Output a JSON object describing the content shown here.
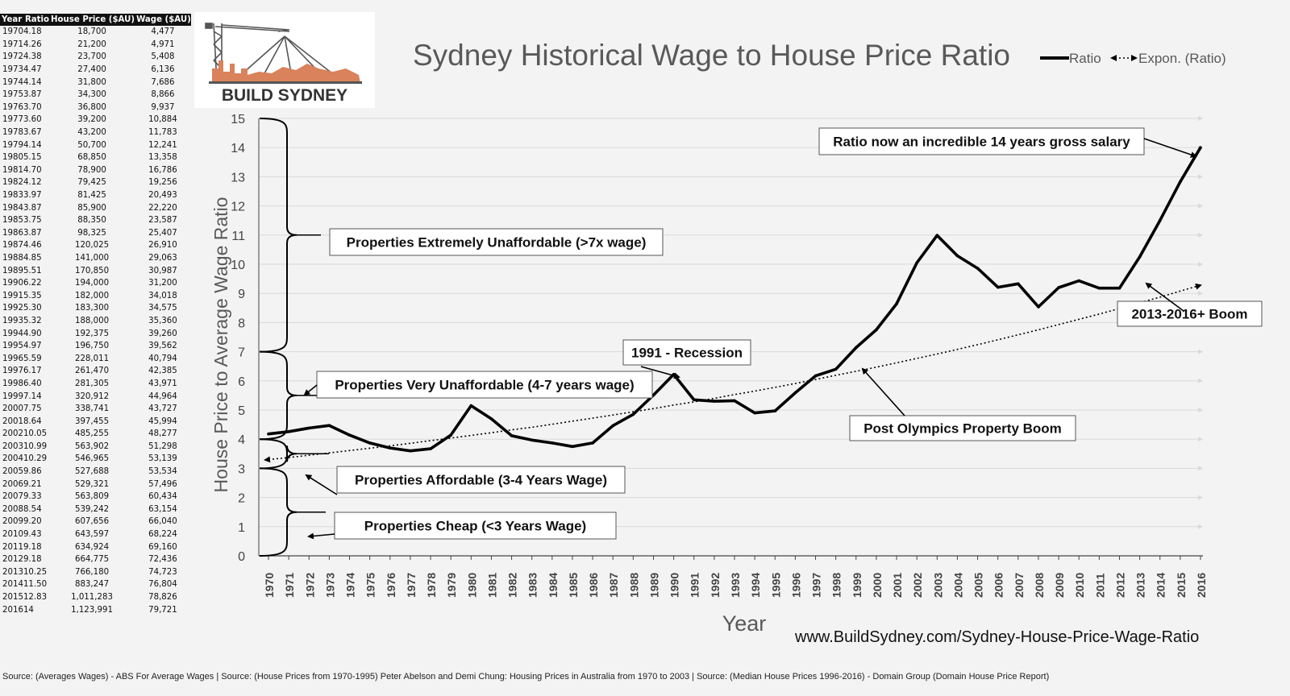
{
  "table": {
    "headers": [
      "Year",
      "Ratio",
      "House Price ($AU)",
      "Wage ($AU)"
    ],
    "rows": [
      [
        "1970",
        "4.18",
        "18,700",
        "4,477"
      ],
      [
        "1971",
        "4.26",
        "21,200",
        "4,971"
      ],
      [
        "1972",
        "4.38",
        "23,700",
        "5,408"
      ],
      [
        "1973",
        "4.47",
        "27,400",
        "6,136"
      ],
      [
        "1974",
        "4.14",
        "31,800",
        "7,686"
      ],
      [
        "1975",
        "3.87",
        "34,300",
        "8,866"
      ],
      [
        "1976",
        "3.70",
        "36,800",
        "9,937"
      ],
      [
        "1977",
        "3.60",
        "39,200",
        "10,884"
      ],
      [
        "1978",
        "3.67",
        "43,200",
        "11,783"
      ],
      [
        "1979",
        "4.14",
        "50,700",
        "12,241"
      ],
      [
        "1980",
        "5.15",
        "68,850",
        "13,358"
      ],
      [
        "1981",
        "4.70",
        "78,900",
        "16,786"
      ],
      [
        "1982",
        "4.12",
        "79,425",
        "19,256"
      ],
      [
        "1983",
        "3.97",
        "81,425",
        "20,493"
      ],
      [
        "1984",
        "3.87",
        "85,900",
        "22,220"
      ],
      [
        "1985",
        "3.75",
        "88,350",
        "23,587"
      ],
      [
        "1986",
        "3.87",
        "98,325",
        "25,407"
      ],
      [
        "1987",
        "4.46",
        "120,025",
        "26,910"
      ],
      [
        "1988",
        "4.85",
        "141,000",
        "29,063"
      ],
      [
        "1989",
        "5.51",
        "170,850",
        "30,987"
      ],
      [
        "1990",
        "6.22",
        "194,000",
        "31,200"
      ],
      [
        "1991",
        "5.35",
        "182,000",
        "34,018"
      ],
      [
        "1992",
        "5.30",
        "183,300",
        "34,575"
      ],
      [
        "1993",
        "5.32",
        "188,000",
        "35,360"
      ],
      [
        "1994",
        "4.90",
        "192,375",
        "39,260"
      ],
      [
        "1995",
        "4.97",
        "196,750",
        "39,562"
      ],
      [
        "1996",
        "5.59",
        "228,011",
        "40,794"
      ],
      [
        "1997",
        "6.17",
        "261,470",
        "42,385"
      ],
      [
        "1998",
        "6.40",
        "281,305",
        "43,971"
      ],
      [
        "1999",
        "7.14",
        "320,912",
        "44,964"
      ],
      [
        "2000",
        "7.75",
        "338,741",
        "43,727"
      ],
      [
        "2001",
        "8.64",
        "397,455",
        "45,994"
      ],
      [
        "2002",
        "10.05",
        "485,255",
        "48,277"
      ],
      [
        "2003",
        "10.99",
        "563,902",
        "51,298"
      ],
      [
        "2004",
        "10.29",
        "546,965",
        "53,139"
      ],
      [
        "2005",
        "9.86",
        "527,688",
        "53,534"
      ],
      [
        "2006",
        "9.21",
        "529,321",
        "57,496"
      ],
      [
        "2007",
        "9.33",
        "563,809",
        "60,434"
      ],
      [
        "2008",
        "8.54",
        "539,242",
        "63,154"
      ],
      [
        "2009",
        "9.20",
        "607,656",
        "66,040"
      ],
      [
        "2010",
        "9.43",
        "643,597",
        "68,224"
      ],
      [
        "2011",
        "9.18",
        "634,924",
        "69,160"
      ],
      [
        "2012",
        "9.18",
        "664,775",
        "72,436"
      ],
      [
        "2013",
        "10.25",
        "766,180",
        "74,723"
      ],
      [
        "2014",
        "11.50",
        "883,247",
        "76,804"
      ],
      [
        "2015",
        "12.83",
        "1,011,283",
        "78,826"
      ],
      [
        "2016",
        "14",
        "1,123,991",
        "79,721"
      ]
    ]
  },
  "logo": {
    "text": "BUILD SYDNEY",
    "colors": {
      "skyline": "#d9825b",
      "crane": "#555555",
      "text": "#333333"
    }
  },
  "chart_data": {
    "type": "line",
    "title": "Sydney Historical Wage to House Price Ratio",
    "xlabel": "Year",
    "ylabel": "House Price to Average Wage Ratio",
    "ylim": [
      0,
      15
    ],
    "yticks": [
      "0",
      "1",
      "2",
      "3",
      "4",
      "5",
      "6",
      "7",
      "8",
      "9",
      "10",
      "11",
      "12",
      "13",
      "14",
      "15"
    ],
    "x": [
      "1970",
      "1971",
      "1972",
      "1973",
      "1974",
      "1975",
      "1976",
      "1977",
      "1978",
      "1979",
      "1980",
      "1981",
      "1982",
      "1983",
      "1984",
      "1985",
      "1986",
      "1987",
      "1988",
      "1989",
      "1990",
      "1991",
      "1992",
      "1993",
      "1994",
      "1995",
      "1996",
      "1997",
      "1998",
      "1999",
      "2000",
      "2001",
      "2002",
      "2003",
      "2004",
      "2005",
      "2006",
      "2007",
      "2008",
      "2009",
      "2010",
      "2011",
      "2012",
      "2013",
      "2014",
      "2015",
      "2016"
    ],
    "series": [
      {
        "name": "Ratio",
        "style": "solid",
        "color": "#000000",
        "values": [
          4.18,
          4.26,
          4.38,
          4.47,
          4.14,
          3.87,
          3.7,
          3.6,
          3.67,
          4.14,
          5.15,
          4.7,
          4.12,
          3.97,
          3.87,
          3.75,
          3.87,
          4.46,
          4.85,
          5.51,
          6.22,
          5.35,
          5.3,
          5.32,
          4.9,
          4.97,
          5.59,
          6.17,
          6.4,
          7.14,
          7.75,
          8.64,
          10.05,
          10.99,
          10.29,
          9.86,
          9.21,
          9.33,
          8.54,
          9.2,
          9.43,
          9.18,
          9.18,
          10.25,
          11.5,
          12.83,
          14.0
        ]
      },
      {
        "name": "Expon. (Ratio)",
        "style": "dotted",
        "color": "#000000",
        "values": [
          3.3,
          3.37,
          3.45,
          3.53,
          3.61,
          3.69,
          3.77,
          3.86,
          3.95,
          4.04,
          4.13,
          4.22,
          4.32,
          4.41,
          4.51,
          4.62,
          4.72,
          4.83,
          4.94,
          5.05,
          5.17,
          5.28,
          5.4,
          5.53,
          5.65,
          5.78,
          5.91,
          6.05,
          6.19,
          6.33,
          6.47,
          6.62,
          6.77,
          6.92,
          7.08,
          7.24,
          7.41,
          7.58,
          7.75,
          7.93,
          8.11,
          8.29,
          8.48,
          8.68,
          8.87,
          9.08,
          9.28
        ]
      }
    ],
    "legend": {
      "position": "top-right",
      "entries": [
        "Ratio",
        "Expon. (Ratio)"
      ]
    },
    "grid": true,
    "annotations": [
      {
        "key": "ext",
        "text": "Properties Extremely Unaffordable (>7x wage)"
      },
      {
        "key": "very",
        "text": "Properties Very Unaffordable (4-7 years wage)"
      },
      {
        "key": "aff",
        "text": "Properties Affordable (3-4 Years Wage)"
      },
      {
        "key": "cheap",
        "text": "Properties Cheap (<3 Years Wage)"
      },
      {
        "key": "rec",
        "text": "1991 - Recession"
      },
      {
        "key": "olym",
        "text": "Post Olympics Property Boom"
      },
      {
        "key": "boom",
        "text": "2013-2016+ Boom"
      },
      {
        "key": "now",
        "text": "Ratio now an incredible 14 years gross salary"
      }
    ]
  },
  "website": "www.BuildSydney.com/Sydney-House-Price-Wage-Ratio",
  "footer": "Source: (Averages Wages) - ABS For Average Wages | Source: (House Prices from 1970-1995) Peter Abelson and Demi Chung: Housing Prices in Australia from 1970 to 2003 | Source: (Median House Prices 1996-2016) - Domain Group (Domain House Price Report)"
}
